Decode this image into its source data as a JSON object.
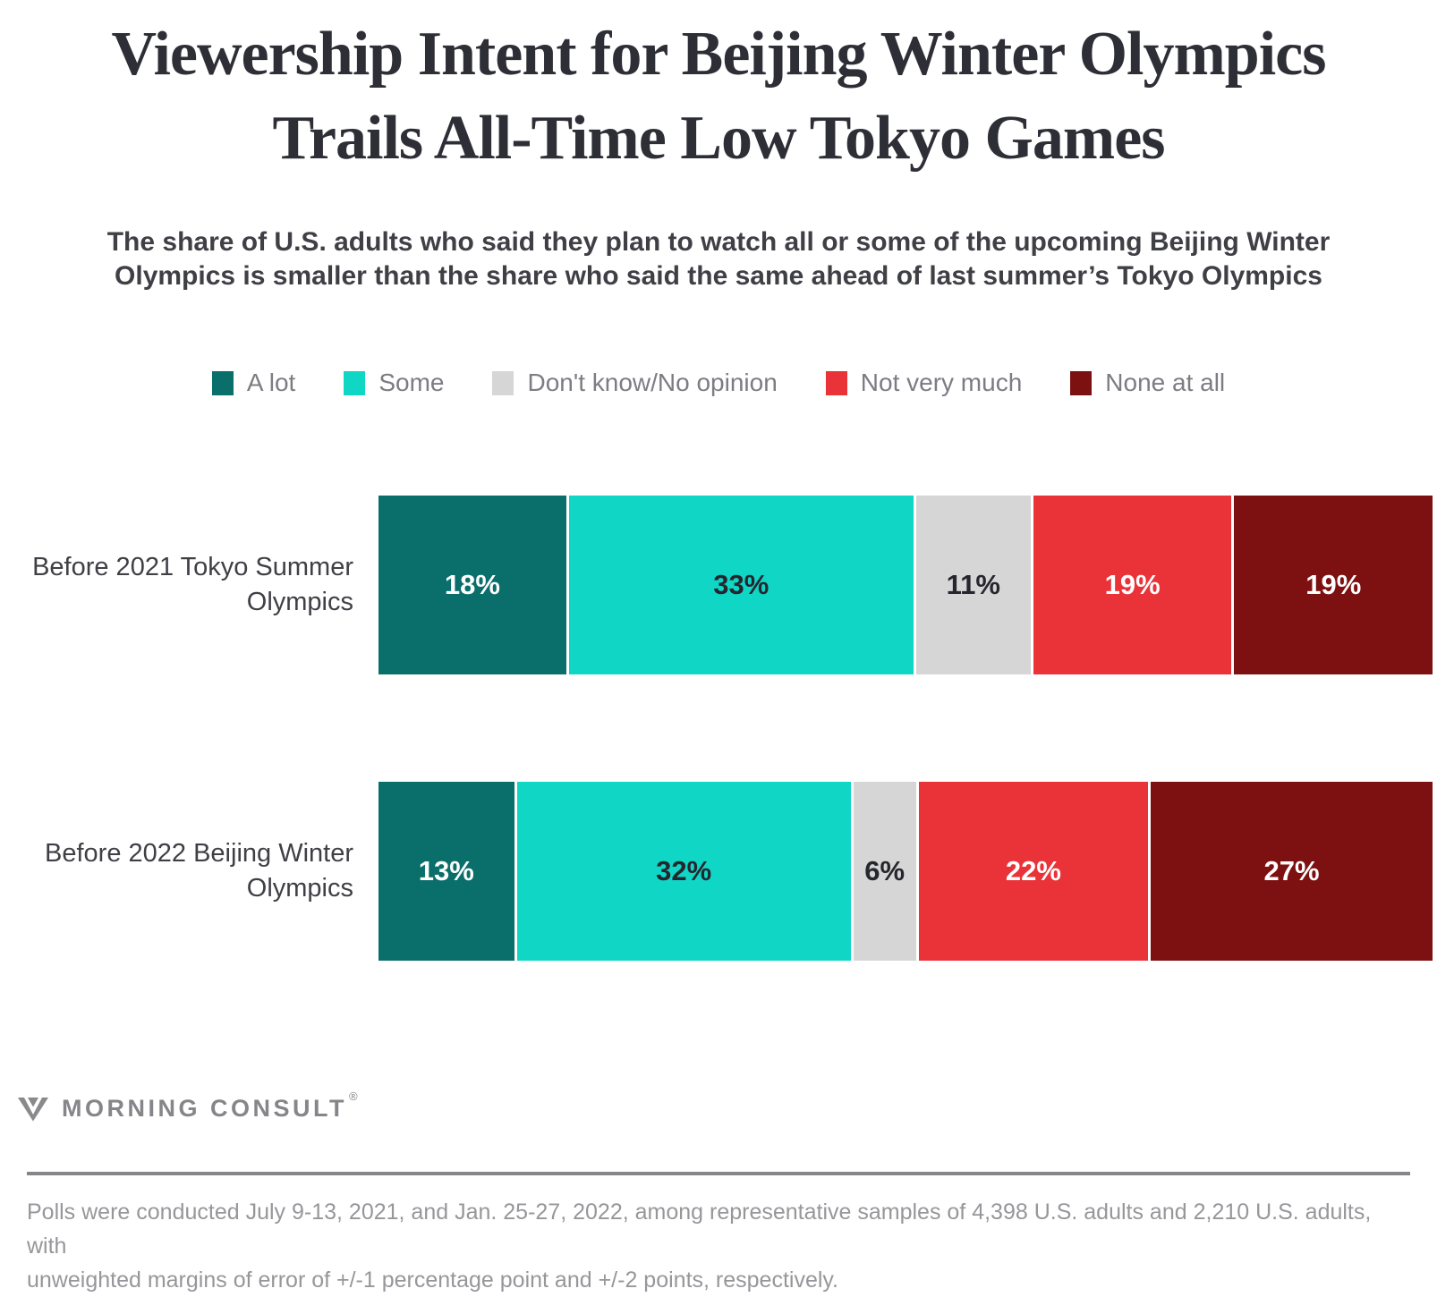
{
  "header": {
    "title_lines": [
      "Viewership Intent for Beijing Winter Olympics",
      "Trails All-Time Low Tokyo Games"
    ],
    "subtitle_lines": [
      "The share of U.S. adults who said they plan to watch all or some of the upcoming Beijing Winter",
      "Olympics is smaller than the share who said the same ahead of last summer’s Tokyo Olympics"
    ]
  },
  "chart_data": {
    "type": "bar",
    "variant": "horizontal-stacked",
    "unit": "%",
    "xlim": [
      0,
      100
    ],
    "grid": false,
    "legend_position": "top-center",
    "categories": [
      "Before 2021 Tokyo Summer Olympics",
      "Before 2022 Beijing Winter Olympics"
    ],
    "series": [
      {
        "name": "A lot",
        "color": "#0A6E6A",
        "text_color": "#FFFFFF",
        "values": [
          18,
          13
        ]
      },
      {
        "name": "Some",
        "color": "#10D6C6",
        "text_color": "#26262E",
        "values": [
          33,
          32
        ]
      },
      {
        "name": "Don't know/No opinion",
        "color": "#D6D6D6",
        "text_color": "#26262E",
        "values": [
          11,
          6
        ]
      },
      {
        "name": "Not very much",
        "color": "#E93338",
        "text_color": "#FFFFFF",
        "values": [
          19,
          22
        ]
      },
      {
        "name": "None at all",
        "color": "#7D1011",
        "text_color": "#FFFFFF",
        "values": [
          19,
          27
        ]
      }
    ]
  },
  "footer": {
    "brand": "MORNING CONSULT",
    "registered": "®",
    "logo_color": "#8A8A8D",
    "note_lines": [
      "Polls were conducted July 9-13, 2021, and Jan. 25-27, 2022, among representative samples of 4,398 U.S. adults and 2,210 U.S. adults, with",
      "unweighted margins of error of +/-1 percentage point and +/-2 points, respectively."
    ]
  }
}
